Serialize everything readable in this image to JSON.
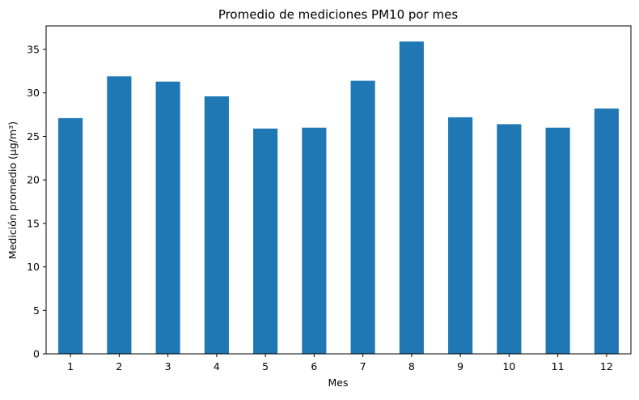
{
  "chart_data": {
    "type": "bar",
    "title": "Promedio de mediciones PM10 por mes",
    "xlabel": "Mes",
    "ylabel": "Medición promedio (µg/m³)",
    "categories": [
      "1",
      "2",
      "3",
      "4",
      "5",
      "6",
      "7",
      "8",
      "9",
      "10",
      "11",
      "12"
    ],
    "values": [
      27.1,
      31.9,
      31.3,
      29.6,
      25.9,
      26.0,
      31.4,
      35.9,
      27.2,
      26.4,
      26.0,
      28.2
    ],
    "ylim": [
      0,
      37.7
    ],
    "yticks": [
      0,
      5,
      10,
      15,
      20,
      25,
      30,
      35
    ],
    "grid": false,
    "legend": "none",
    "colors": {
      "bar": "#1f77b4",
      "axis": "#000000",
      "background": "#ffffff"
    }
  }
}
